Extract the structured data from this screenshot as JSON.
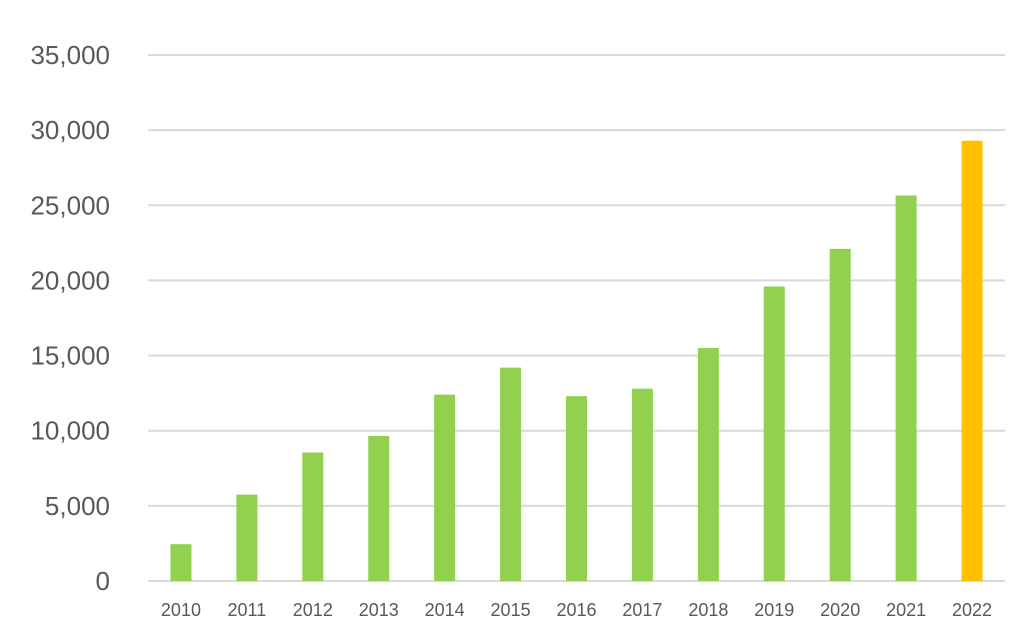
{
  "chart_data": {
    "type": "bar",
    "title": "",
    "xlabel": "",
    "ylabel": "",
    "categories": [
      "2010",
      "2011",
      "2012",
      "2013",
      "2014",
      "2015",
      "2016",
      "2017",
      "2018",
      "2019",
      "2020",
      "2021",
      "2022"
    ],
    "values": [
      2450,
      5750,
      8550,
      9650,
      12400,
      14200,
      12300,
      12800,
      15500,
      19600,
      22100,
      25650,
      29300
    ],
    "ylim": [
      0,
      35000
    ],
    "yticks": [
      0,
      5000,
      10000,
      15000,
      20000,
      25000,
      30000,
      35000
    ],
    "ytick_labels": [
      "0",
      "5,000",
      "10,000",
      "15,000",
      "20,000",
      "25,000",
      "30,000",
      "35,000"
    ],
    "grid": true,
    "legend": "none",
    "colors": {
      "default_bar": "#92d050",
      "highlight_bar": "#ffc000",
      "gridline": "#d9d9d9",
      "tick_text": "#595959"
    },
    "highlight_categories": [
      "2022"
    ]
  }
}
